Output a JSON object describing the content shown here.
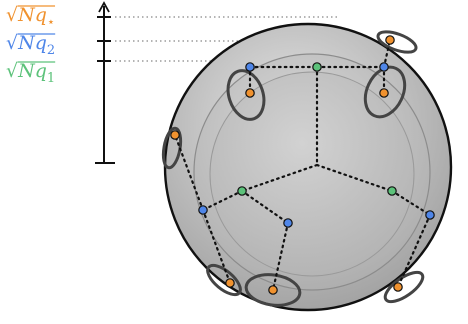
{
  "labels": {
    "q_star": {
      "radical": "√",
      "symbol": "N",
      "var": "q",
      "sub": "⋆",
      "color": "#f0922f"
    },
    "q_2": {
      "radical": "√",
      "symbol": "N",
      "var": "q",
      "sub": "2",
      "color": "#4f86e8"
    },
    "q_1": {
      "radical": "√",
      "symbol": "N",
      "var": "q",
      "sub": "1",
      "color": "#5cc27a"
    }
  },
  "colors": {
    "orange_node": "#f0922f",
    "blue_node": "#4f86e8",
    "green_node": "#5cc27a",
    "sphere_outline": "#111111",
    "dotted_line": "#111111"
  }
}
